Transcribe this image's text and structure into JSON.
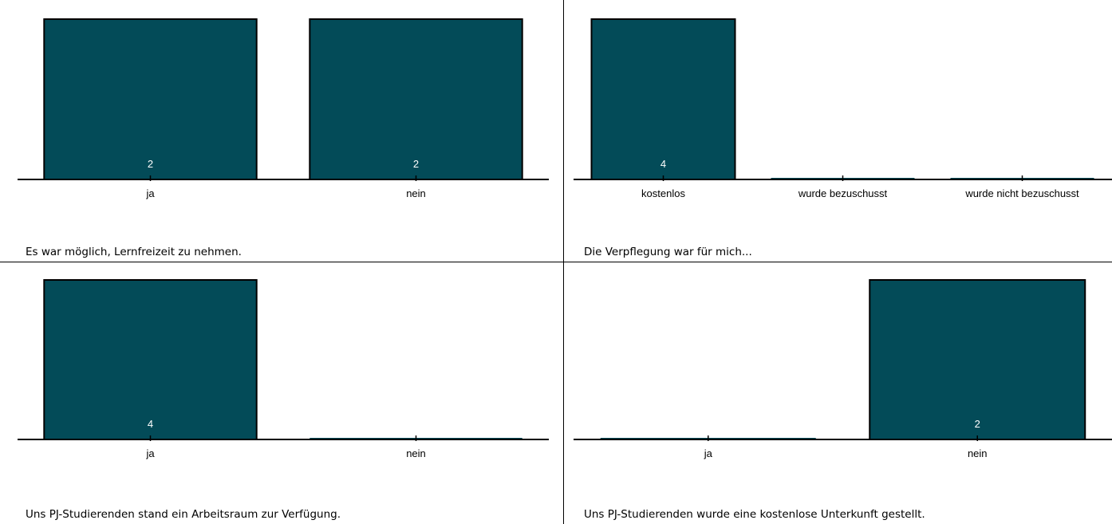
{
  "chart_data": [
    {
      "type": "bar",
      "title": "Es war möglich, Lernfreizeit zu nehmen.",
      "categories": [
        "ja",
        "nein"
      ],
      "values": [
        2,
        2
      ],
      "ylim": [
        0,
        2
      ],
      "bar_color": "#034b58"
    },
    {
      "type": "bar",
      "title": "Die Verpflegung war für mich...",
      "categories": [
        "kostenlos",
        "wurde bezuschusst",
        "wurde nicht bezuschusst"
      ],
      "values": [
        4,
        0,
        0
      ],
      "ylim": [
        0,
        4
      ],
      "bar_color": "#034b58"
    },
    {
      "type": "bar",
      "title": "Uns PJ-Studierenden stand ein Arbeitsraum zur Verfügung.",
      "categories": [
        "ja",
        "nein"
      ],
      "values": [
        4,
        0
      ],
      "ylim": [
        0,
        4
      ],
      "bar_color": "#034b58"
    },
    {
      "type": "bar",
      "title": "Uns PJ-Studierenden wurde eine kostenlose Unterkunft gestellt.",
      "categories": [
        "ja",
        "nein"
      ],
      "values": [
        0,
        2
      ],
      "ylim": [
        0,
        2
      ],
      "bar_color": "#034b58"
    }
  ]
}
